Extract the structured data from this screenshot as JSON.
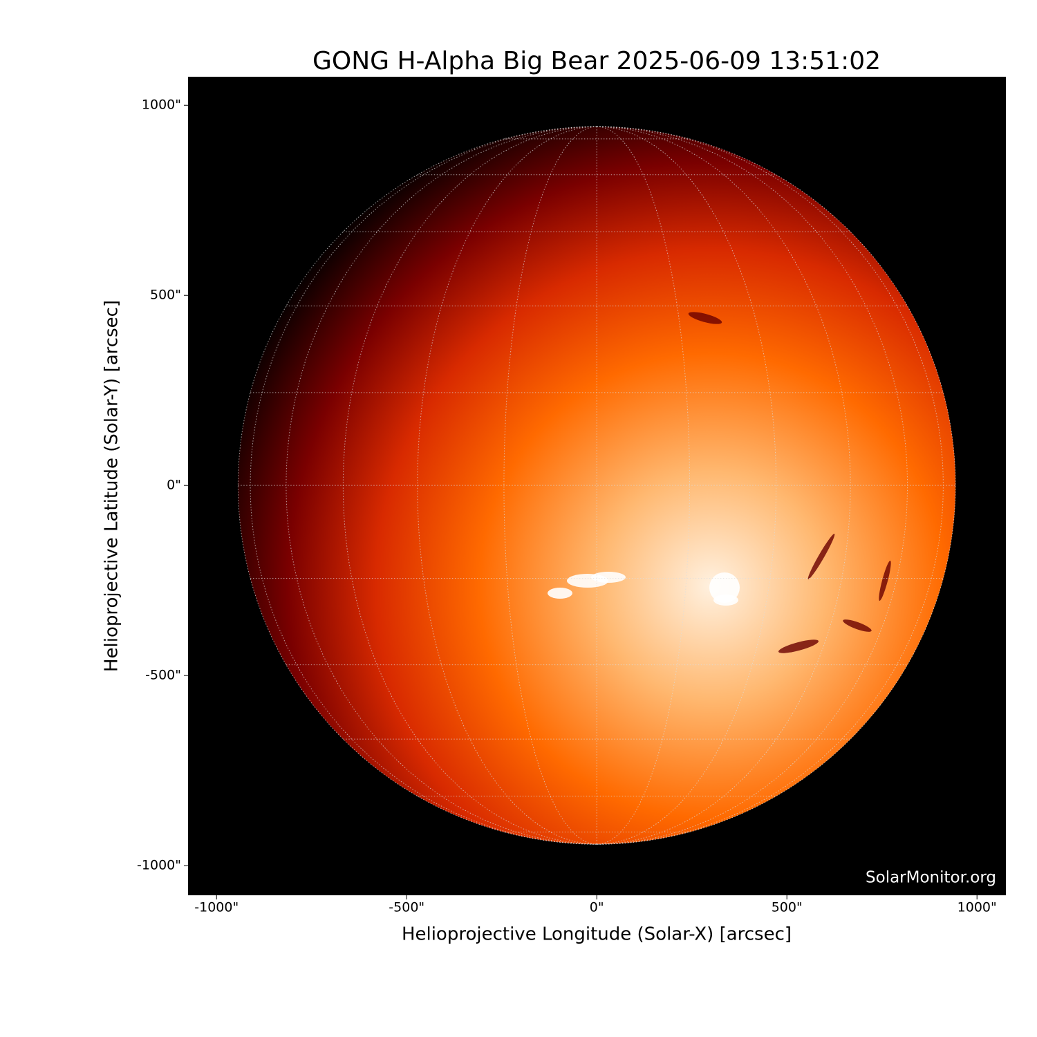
{
  "chart_data": {
    "type": "image",
    "title": "GONG H-Alpha Big Bear 2025-06-09 13:51:02",
    "x_label": "Helioprojective Longitude (Solar-X) [arcsec]",
    "y_label": "Helioprojective Latitude (Solar-Y) [arcsec]",
    "watermark": "SolarMonitor.org",
    "xlim": [
      -1075,
      1076
    ],
    "ylim": [
      -1078,
      1075
    ],
    "xticks": [
      {
        "value": -1000,
        "label": "-1000\""
      },
      {
        "value": -500,
        "label": "-500\""
      },
      {
        "value": 0,
        "label": "0\""
      },
      {
        "value": 500,
        "label": "500\""
      },
      {
        "value": 1000,
        "label": "1000\""
      }
    ],
    "yticks": [
      {
        "value": -1000,
        "label": "-1000\""
      },
      {
        "value": -500,
        "label": "-500\""
      },
      {
        "value": 0,
        "label": "0\""
      },
      {
        "value": 500,
        "label": "500\""
      },
      {
        "value": 1000,
        "label": "1000\""
      }
    ]
  }
}
